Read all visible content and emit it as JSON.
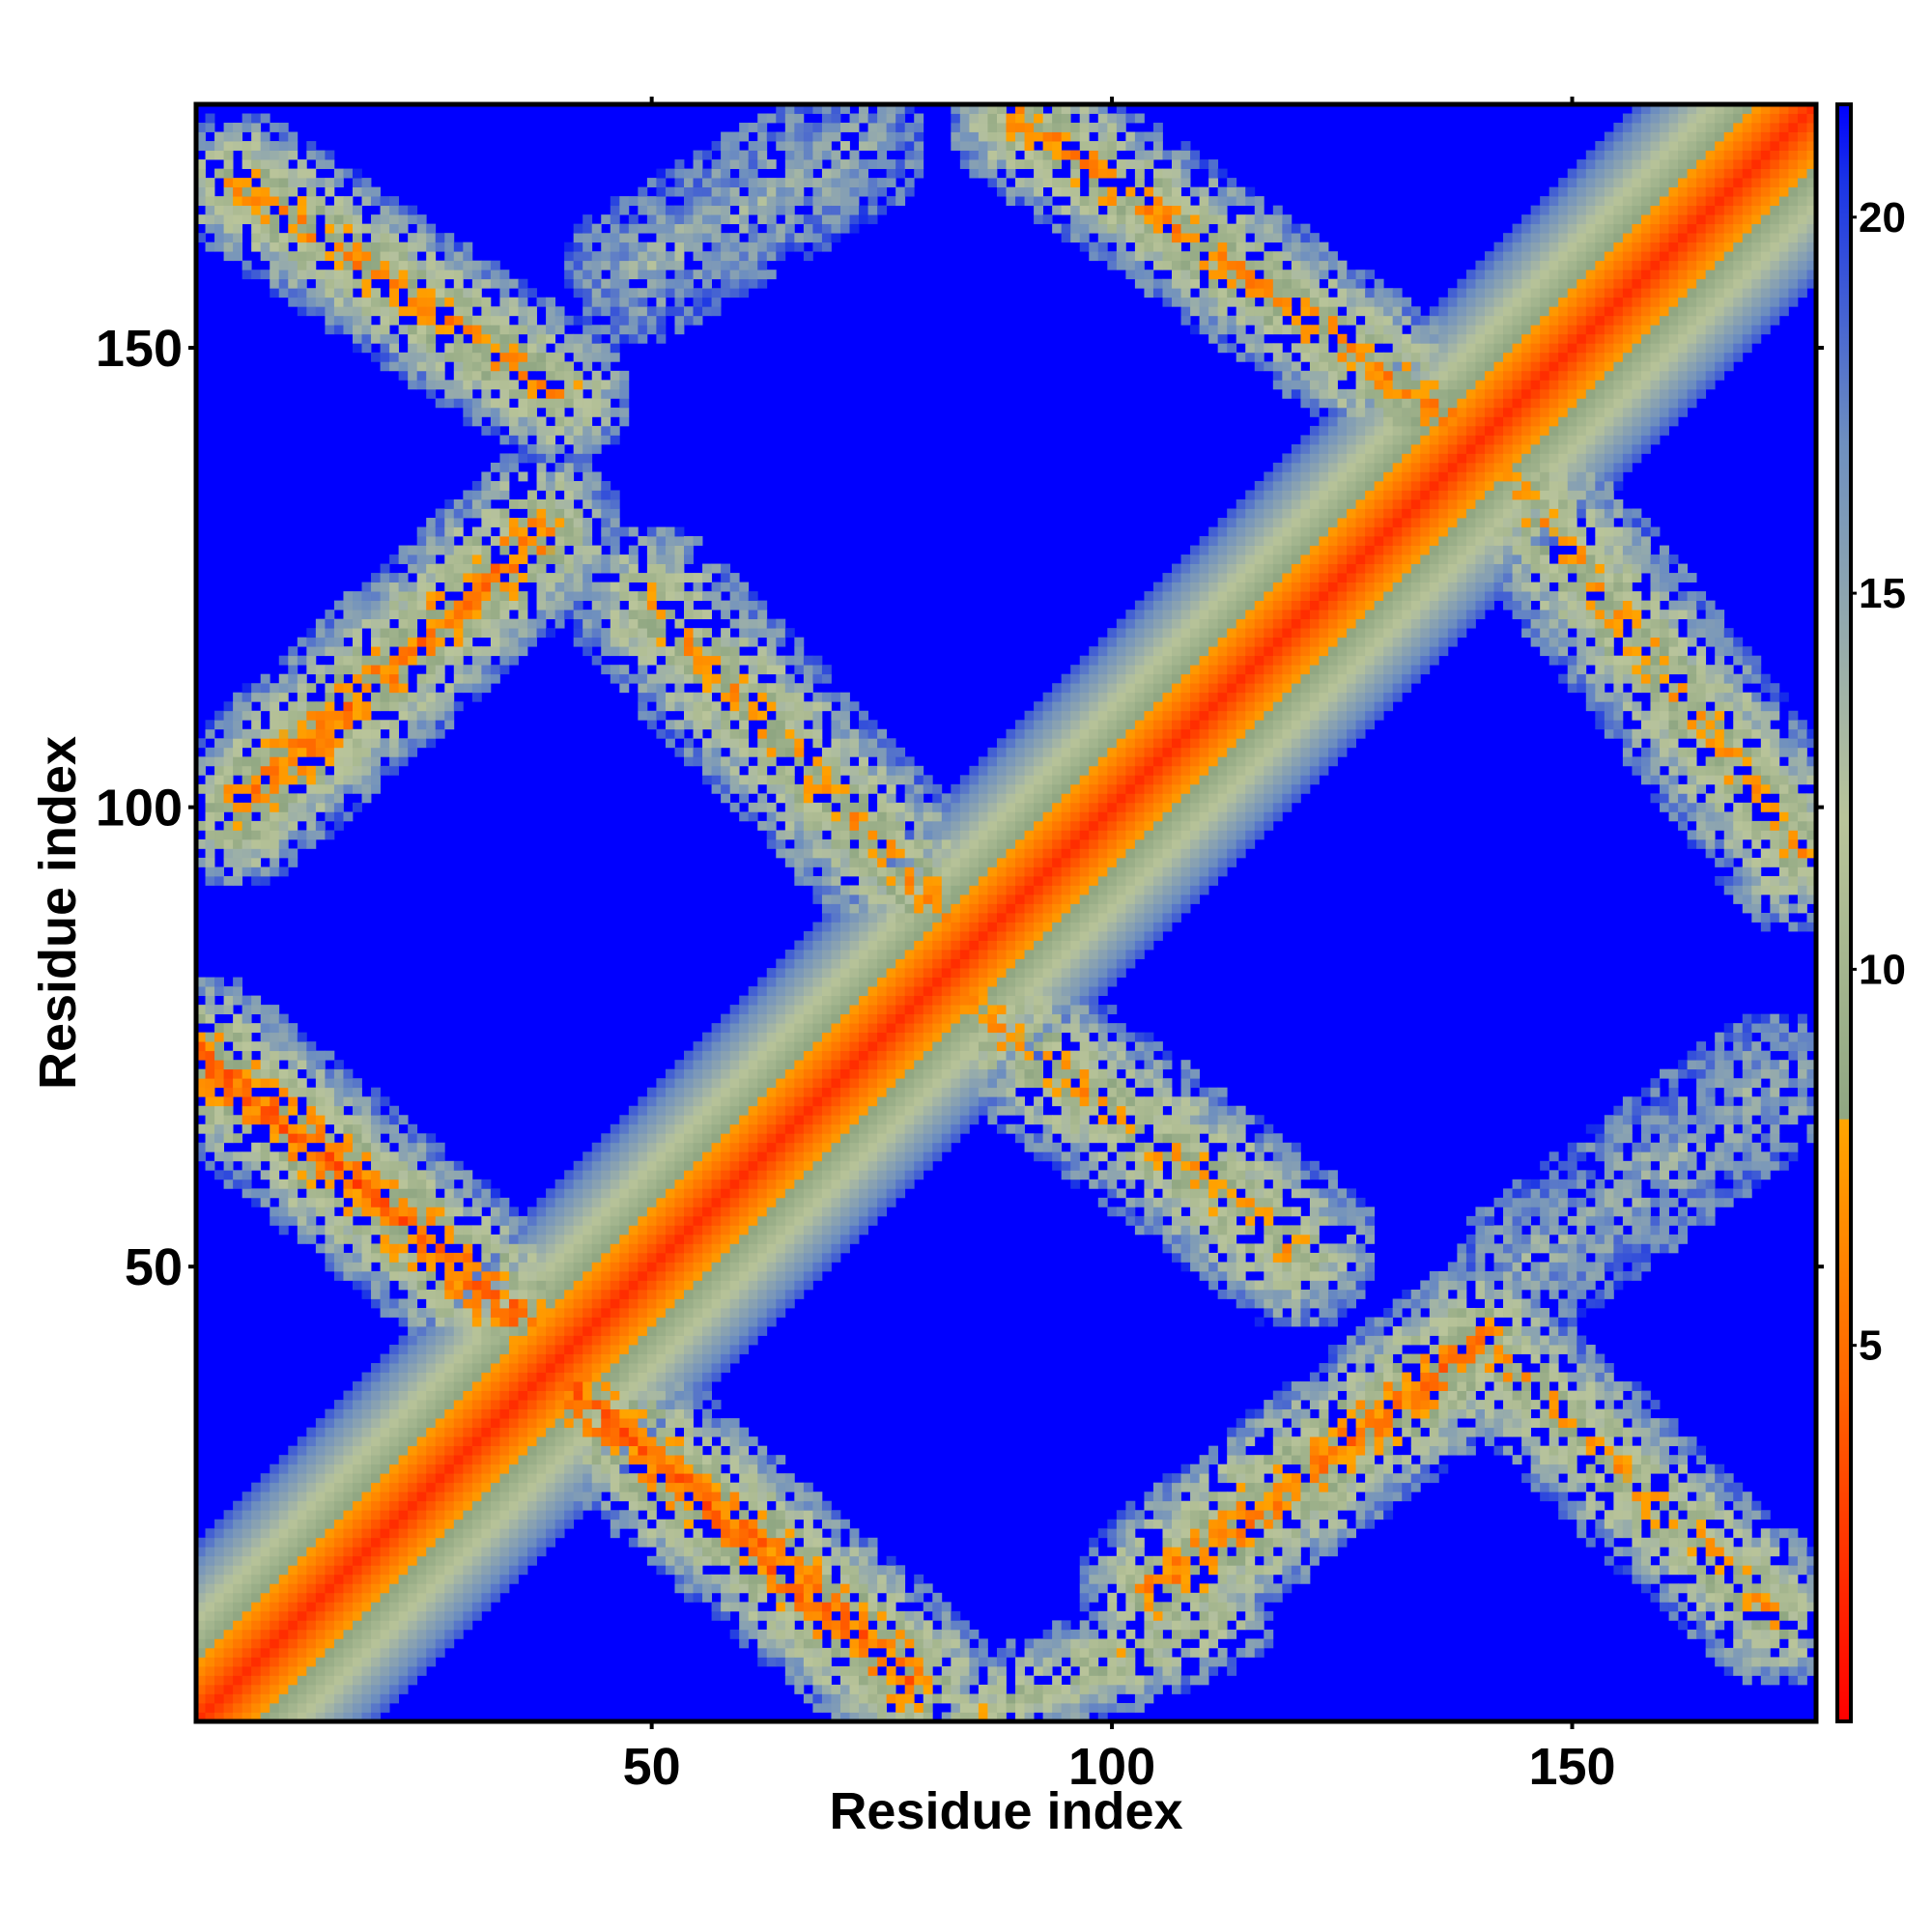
{
  "chart_data": {
    "type": "heatmap",
    "title": "",
    "xlabel": "Residue index",
    "ylabel": "Residue index",
    "x_range": [
      1,
      176
    ],
    "y_range": [
      1,
      176
    ],
    "x_ticks": [
      50,
      100,
      150
    ],
    "y_ticks": [
      50,
      100,
      150
    ],
    "x_tick_labels": [
      "50",
      "100",
      "150"
    ],
    "y_tick_labels": [
      "50",
      "100",
      "150"
    ],
    "colorbar": {
      "range": [
        0,
        21.5
      ],
      "ticks": [
        5,
        10,
        15,
        20
      ],
      "tick_labels": [
        "5",
        "10",
        "15",
        "20"
      ],
      "position": "right",
      "colors": [
        {
          "value": 0,
          "color": "#ff0000"
        },
        {
          "value": 4.5,
          "color": "#ff6600"
        },
        {
          "value": 8,
          "color": "#ffa500"
        },
        {
          "value": 8.01,
          "color": "#8fa682"
        },
        {
          "value": 12,
          "color": "#b9c49a"
        },
        {
          "value": 17,
          "color": "#6e8fbf"
        },
        {
          "value": 20.5,
          "color": "#1a33e6"
        },
        {
          "value": 21.5,
          "color": "#0000ff"
        }
      ]
    },
    "cutoff_value": 21.5,
    "background_color": "#0000ff",
    "contact_bands": [
      {
        "name": "diagonal",
        "i_start": 1,
        "j_start": 1,
        "i_end": 176,
        "j_end": 176,
        "min_distance": 0,
        "width": 14
      },
      {
        "name": "helix-hairpin-1",
        "i_start": 1,
        "j_start": 73,
        "i_end": 35,
        "j_end": 45,
        "min_distance": 4,
        "width": 9
      },
      {
        "name": "helix-hairpin-2",
        "i_start": 40,
        "j_start": 38,
        "i_end": 78,
        "j_end": 5,
        "min_distance": 4,
        "width": 9
      },
      {
        "name": "helix-pair-upper-left",
        "i_start": 5,
        "j_start": 168,
        "i_end": 40,
        "j_end": 145,
        "min_distance": 6,
        "width": 8
      },
      {
        "name": "helix-pair-left-mid",
        "i_start": 5,
        "j_start": 100,
        "i_end": 38,
        "j_end": 130,
        "min_distance": 5,
        "width": 9
      },
      {
        "name": "helix-pair-center-1",
        "i_start": 50,
        "j_start": 122,
        "i_end": 85,
        "j_end": 85,
        "min_distance": 7,
        "width": 9
      },
      {
        "name": "helix-pair-center-2",
        "i_start": 80,
        "j_start": 82,
        "i_end": 120,
        "j_end": 52,
        "min_distance": 7,
        "width": 9
      },
      {
        "name": "helix-pair-right-lower",
        "i_start": 105,
        "j_start": 15,
        "i_end": 140,
        "j_end": 42,
        "min_distance": 5,
        "width": 9
      },
      {
        "name": "helix-pair-right-bottom",
        "i_start": 140,
        "j_start": 42,
        "i_end": 172,
        "j_end": 12,
        "min_distance": 7,
        "width": 8
      },
      {
        "name": "helix-pair-upper-right",
        "i_start": 90,
        "j_start": 175,
        "i_end": 140,
        "j_end": 140,
        "min_distance": 6,
        "width": 8
      },
      {
        "name": "helix-pair-right-mid",
        "i_start": 140,
        "j_start": 140,
        "i_end": 175,
        "j_end": 95,
        "min_distance": 7,
        "width": 9
      },
      {
        "name": "weak-top-center",
        "i_start": 48,
        "j_start": 158,
        "i_end": 72,
        "j_end": 172,
        "min_distance": 14,
        "width": 8
      },
      {
        "name": "weak-bottom-right",
        "i_start": 145,
        "j_start": 50,
        "i_end": 172,
        "j_end": 70,
        "min_distance": 14,
        "width": 8
      },
      {
        "name": "weak-bottom-center",
        "i_start": 85,
        "j_start": 1,
        "i_end": 112,
        "j_end": 12,
        "min_distance": 9,
        "width": 6
      }
    ]
  }
}
